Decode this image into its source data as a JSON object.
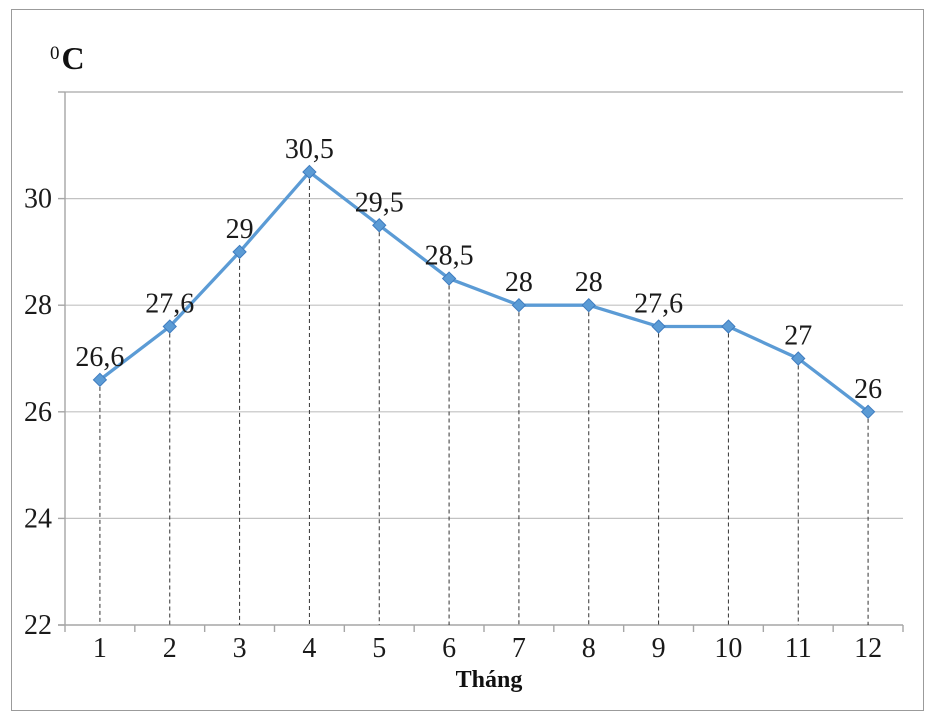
{
  "chart_data": {
    "type": "line",
    "title": "",
    "xlabel": "Tháng",
    "ylabel": "C",
    "ylabel_superscript": "0",
    "categories": [
      "1",
      "2",
      "3",
      "4",
      "5",
      "6",
      "7",
      "8",
      "9",
      "10",
      "11",
      "12"
    ],
    "series": [
      {
        "values": [
          26.6,
          27.6,
          29,
          30.5,
          29.5,
          28.5,
          28,
          28,
          27.6,
          27.6,
          27,
          26
        ]
      }
    ],
    "data_labels": [
      "26,6",
      "27,6",
      "29",
      "30,5",
      "29,5",
      "28,5",
      "28",
      "28",
      "27,6",
      "",
      "27",
      "26"
    ],
    "y_ticks": [
      22,
      24,
      26,
      28,
      30
    ],
    "y_gridlines": [
      24,
      26,
      28,
      30
    ],
    "ylim": [
      22,
      32
    ],
    "grid": true,
    "legend_position": "none",
    "colors": {
      "line": "#5B9BD5",
      "marker_fill": "#5B9BD5",
      "marker_edge": "#3F7CBF",
      "gridline": "#C2C2C2",
      "axis": "#A6A6A6",
      "dropline": "#333333",
      "text": "#1a1a1a"
    }
  }
}
